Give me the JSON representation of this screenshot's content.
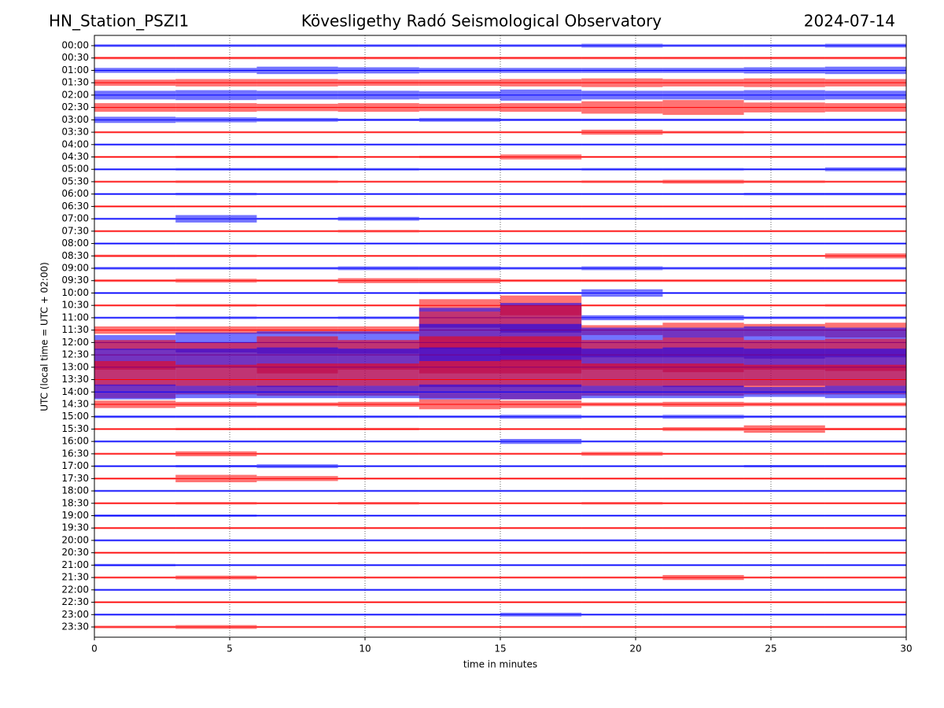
{
  "chart_data": {
    "type": "helicorder",
    "title": "Kövesligethy Radó Seismological Observatory",
    "station": "HN_Station_PSZI1",
    "date": "2024-07-14",
    "x_label": "time in minutes",
    "y_label": "UTC (local time = UTC + 02:00)",
    "xlim": [
      0,
      30
    ],
    "xticks": [
      0,
      5,
      10,
      15,
      20,
      25,
      30
    ],
    "grid": true,
    "colors": [
      "#0000ff",
      "#ff0000"
    ],
    "bins": [
      0,
      3,
      6,
      9,
      12,
      15,
      18,
      21,
      24,
      27,
      30
    ],
    "rows": [
      {
        "label": "00:00",
        "values": [
          0.1,
          0.1,
          0.1,
          0.1,
          0.1,
          0.1,
          0.15,
          0.1,
          0.1,
          0.15
        ]
      },
      {
        "label": "00:30",
        "values": [
          0.1,
          0.1,
          0.1,
          0.1,
          0.1,
          0.1,
          0.1,
          0.1,
          0.1,
          0.1
        ]
      },
      {
        "label": "01:00",
        "values": [
          0.2,
          0.2,
          0.3,
          0.25,
          0.2,
          0.2,
          0.2,
          0.2,
          0.25,
          0.3
        ]
      },
      {
        "label": "01:30",
        "values": [
          0.25,
          0.3,
          0.3,
          0.25,
          0.25,
          0.3,
          0.35,
          0.3,
          0.35,
          0.3
        ]
      },
      {
        "label": "02:00",
        "values": [
          0.35,
          0.4,
          0.35,
          0.35,
          0.3,
          0.45,
          0.35,
          0.35,
          0.4,
          0.35
        ]
      },
      {
        "label": "02:30",
        "values": [
          0.35,
          0.35,
          0.3,
          0.35,
          0.3,
          0.35,
          0.5,
          0.6,
          0.4,
          0.35
        ]
      },
      {
        "label": "03:00",
        "values": [
          0.25,
          0.2,
          0.15,
          0.1,
          0.15,
          0.1,
          0.1,
          0.1,
          0.1,
          0.1
        ]
      },
      {
        "label": "03:30",
        "values": [
          0.08,
          0.08,
          0.08,
          0.08,
          0.08,
          0.08,
          0.2,
          0.1,
          0.08,
          0.08
        ]
      },
      {
        "label": "04:00",
        "values": [
          0.08,
          0.08,
          0.08,
          0.08,
          0.08,
          0.08,
          0.08,
          0.08,
          0.08,
          0.08
        ]
      },
      {
        "label": "04:30",
        "values": [
          0.08,
          0.1,
          0.1,
          0.08,
          0.1,
          0.2,
          0.08,
          0.08,
          0.08,
          0.08
        ]
      },
      {
        "label": "05:00",
        "values": [
          0.08,
          0.1,
          0.1,
          0.1,
          0.08,
          0.08,
          0.1,
          0.1,
          0.08,
          0.15
        ]
      },
      {
        "label": "05:30",
        "values": [
          0.08,
          0.1,
          0.1,
          0.08,
          0.08,
          0.08,
          0.1,
          0.15,
          0.1,
          0.08
        ]
      },
      {
        "label": "06:00",
        "values": [
          0.08,
          0.1,
          0.08,
          0.08,
          0.08,
          0.08,
          0.08,
          0.08,
          0.1,
          0.1
        ]
      },
      {
        "label": "06:30",
        "values": [
          0.08,
          0.08,
          0.08,
          0.08,
          0.08,
          0.08,
          0.08,
          0.08,
          0.08,
          0.08
        ]
      },
      {
        "label": "07:00",
        "values": [
          0.08,
          0.3,
          0.08,
          0.15,
          0.08,
          0.08,
          0.08,
          0.08,
          0.08,
          0.08
        ]
      },
      {
        "label": "07:30",
        "values": [
          0.08,
          0.08,
          0.08,
          0.1,
          0.08,
          0.08,
          0.08,
          0.08,
          0.08,
          0.08
        ]
      },
      {
        "label": "08:00",
        "values": [
          0.08,
          0.08,
          0.08,
          0.08,
          0.08,
          0.08,
          0.08,
          0.08,
          0.08,
          0.08
        ]
      },
      {
        "label": "08:30",
        "values": [
          0.1,
          0.1,
          0.08,
          0.08,
          0.08,
          0.08,
          0.08,
          0.08,
          0.08,
          0.2
        ]
      },
      {
        "label": "09:00",
        "values": [
          0.1,
          0.1,
          0.1,
          0.15,
          0.15,
          0.1,
          0.15,
          0.1,
          0.1,
          0.1
        ]
      },
      {
        "label": "09:30",
        "values": [
          0.1,
          0.15,
          0.1,
          0.2,
          0.2,
          0.1,
          0.1,
          0.1,
          0.1,
          0.1
        ]
      },
      {
        "label": "10:00",
        "values": [
          0.08,
          0.08,
          0.08,
          0.08,
          0.1,
          0.08,
          0.3,
          0.08,
          0.08,
          0.08
        ]
      },
      {
        "label": "10:30",
        "values": [
          0.08,
          0.1,
          0.08,
          0.08,
          0.5,
          0.8,
          0.08,
          0.08,
          0.08,
          0.1
        ]
      },
      {
        "label": "11:00",
        "values": [
          0.08,
          0.1,
          0.08,
          0.1,
          0.8,
          1.2,
          0.2,
          0.2,
          0.1,
          0.1
        ]
      },
      {
        "label": "11:30",
        "values": [
          0.3,
          0.3,
          0.3,
          0.3,
          1.5,
          2,
          0.4,
          0.6,
          0.5,
          0.6
        ]
      },
      {
        "label": "12:00",
        "values": [
          0.6,
          0.8,
          0.9,
          0.9,
          1.5,
          1.5,
          1.2,
          1.2,
          1.3,
          1.2
        ]
      },
      {
        "label": "12:30",
        "values": [
          1.2,
          1,
          1.5,
          1.2,
          1.5,
          1.5,
          1.2,
          1.4,
          1.2,
          1.3
        ]
      },
      {
        "label": "13:00",
        "values": [
          1.5,
          1.5,
          1.6,
          1.5,
          1.6,
          1.6,
          1.5,
          1.6,
          1.5,
          1.5
        ]
      },
      {
        "label": "13:30",
        "values": [
          1.5,
          1.2,
          1.3,
          1.3,
          1.5,
          1.6,
          1.3,
          1.3,
          1.2,
          1.2
        ]
      },
      {
        "label": "14:00",
        "values": [
          0.6,
          0.5,
          0.5,
          0.5,
          0.6,
          0.6,
          0.5,
          0.5,
          0.4,
          0.5
        ]
      },
      {
        "label": "14:30",
        "values": [
          0.3,
          0.2,
          0.15,
          0.2,
          0.4,
          0.3,
          0.15,
          0.2,
          0.15,
          0.15
        ]
      },
      {
        "label": "15:00",
        "values": [
          0.1,
          0.1,
          0.1,
          0.1,
          0.1,
          0.15,
          0.1,
          0.15,
          0.1,
          0.1
        ]
      },
      {
        "label": "15:30",
        "values": [
          0.08,
          0.1,
          0.1,
          0.1,
          0.08,
          0.08,
          0.08,
          0.15,
          0.3,
          0.1
        ]
      },
      {
        "label": "16:00",
        "values": [
          0.08,
          0.08,
          0.08,
          0.08,
          0.08,
          0.2,
          0.08,
          0.08,
          0.08,
          0.08
        ]
      },
      {
        "label": "16:30",
        "values": [
          0.08,
          0.2,
          0.08,
          0.08,
          0.08,
          0.08,
          0.15,
          0.08,
          0.08,
          0.08
        ]
      },
      {
        "label": "17:00",
        "values": [
          0.08,
          0.1,
          0.15,
          0.08,
          0.08,
          0.08,
          0.08,
          0.08,
          0.1,
          0.1
        ]
      },
      {
        "label": "17:30",
        "values": [
          0.08,
          0.3,
          0.2,
          0.08,
          0.08,
          0.08,
          0.08,
          0.08,
          0.08,
          0.08
        ]
      },
      {
        "label": "18:00",
        "values": [
          0.08,
          0.08,
          0.08,
          0.08,
          0.08,
          0.08,
          0.08,
          0.08,
          0.08,
          0.08
        ]
      },
      {
        "label": "18:30",
        "values": [
          0.08,
          0.1,
          0.08,
          0.1,
          0.08,
          0.08,
          0.1,
          0.08,
          0.08,
          0.08
        ]
      },
      {
        "label": "19:00",
        "values": [
          0.1,
          0.1,
          0.08,
          0.08,
          0.08,
          0.08,
          0.08,
          0.08,
          0.08,
          0.08
        ]
      },
      {
        "label": "19:30",
        "values": [
          0.08,
          0.08,
          0.08,
          0.08,
          0.08,
          0.08,
          0.08,
          0.08,
          0.08,
          0.08
        ]
      },
      {
        "label": "20:00",
        "values": [
          0.08,
          0.08,
          0.08,
          0.08,
          0.08,
          0.08,
          0.08,
          0.08,
          0.08,
          0.08
        ]
      },
      {
        "label": "20:30",
        "values": [
          0.08,
          0.08,
          0.08,
          0.08,
          0.08,
          0.08,
          0.08,
          0.08,
          0.08,
          0.08
        ]
      },
      {
        "label": "21:00",
        "values": [
          0.1,
          0.08,
          0.08,
          0.08,
          0.08,
          0.08,
          0.08,
          0.08,
          0.08,
          0.08
        ]
      },
      {
        "label": "21:30",
        "values": [
          0.08,
          0.15,
          0.08,
          0.08,
          0.08,
          0.08,
          0.08,
          0.2,
          0.08,
          0.08
        ]
      },
      {
        "label": "22:00",
        "values": [
          0.08,
          0.08,
          0.08,
          0.08,
          0.08,
          0.08,
          0.08,
          0.08,
          0.08,
          0.08
        ]
      },
      {
        "label": "22:30",
        "values": [
          0.08,
          0.08,
          0.08,
          0.08,
          0.08,
          0.08,
          0.08,
          0.08,
          0.08,
          0.08
        ]
      },
      {
        "label": "23:00",
        "values": [
          0.08,
          0.08,
          0.08,
          0.08,
          0.08,
          0.15,
          0.08,
          0.08,
          0.08,
          0.08
        ]
      },
      {
        "label": "23:30",
        "values": [
          0.1,
          0.15,
          0.08,
          0.08,
          0.08,
          0.08,
          0.08,
          0.08,
          0.08,
          0.08
        ]
      }
    ]
  }
}
